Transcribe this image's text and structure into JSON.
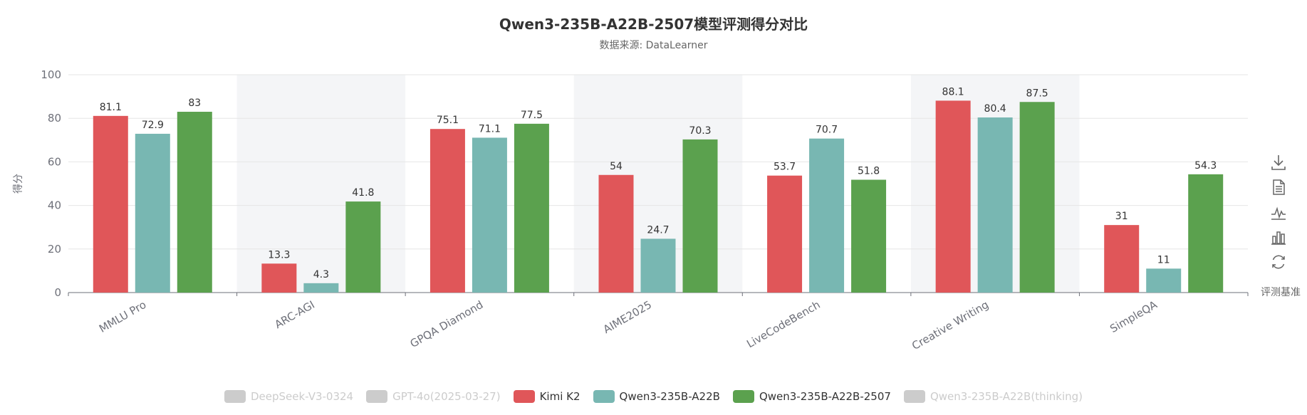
{
  "chart_data": {
    "type": "bar",
    "title": "Qwen3-235B-A22B-2507模型评测得分对比",
    "subtitle": "数据来源: DataLearner",
    "ylabel": "得分",
    "xlabel": "",
    "ylim": [
      0,
      100
    ],
    "yticks": [
      0,
      20,
      40,
      60,
      80,
      100
    ],
    "grid": true,
    "categories": [
      "MMLU Pro",
      "ARC-AGI",
      "GPQA Diamond",
      "AIME2025",
      "LiveCodeBench",
      "Creative Writing",
      "SimpleQA"
    ],
    "series": [
      {
        "name": "Kimi K2",
        "color": "#e05659",
        "values": [
          81.1,
          13.3,
          75.1,
          54,
          53.7,
          88.1,
          31
        ]
      },
      {
        "name": "Qwen3-235B-A22B",
        "color": "#78b7b2",
        "values": [
          72.9,
          4.3,
          71.1,
          24.7,
          70.7,
          80.4,
          11
        ]
      },
      {
        "name": "Qwen3-235B-A22B-2507",
        "color": "#5ba14e",
        "values": [
          83,
          41.8,
          77.5,
          70.3,
          51.8,
          87.5,
          54.3
        ]
      }
    ],
    "legend": {
      "placement": "bottom",
      "items": [
        {
          "name": "DeepSeek-V3-0324",
          "active": false,
          "color": "#cccccc"
        },
        {
          "name": "GPT-4o(2025-03-27)",
          "active": false,
          "color": "#cccccc"
        },
        {
          "name": "Kimi K2",
          "active": true,
          "color": "#e05659"
        },
        {
          "name": "Qwen3-235B-A22B",
          "active": true,
          "color": "#78b7b2"
        },
        {
          "name": "Qwen3-235B-A22B-2507",
          "active": true,
          "color": "#5ba14e"
        },
        {
          "name": "Qwen3-235B-A22B(thinking)",
          "active": false,
          "color": "#cccccc"
        }
      ]
    }
  },
  "toolbox": {
    "icons": [
      "download-icon",
      "data-view-icon",
      "line-chart-icon",
      "bar-chart-icon",
      "restore-icon"
    ],
    "hover_label": "评测基准"
  }
}
